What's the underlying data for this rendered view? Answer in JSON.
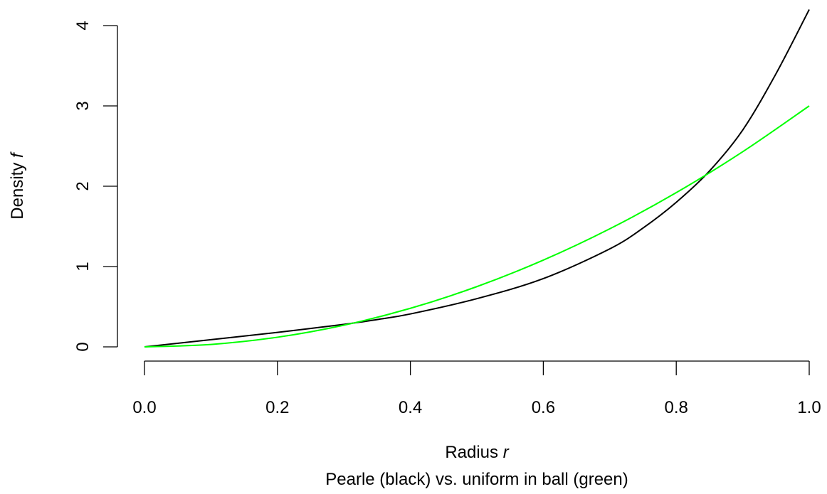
{
  "chart_data": {
    "type": "line",
    "xlabel": {
      "text": "Radius ",
      "var": "r"
    },
    "ylabel": {
      "text": "Density ",
      "var": "f"
    },
    "subtitle": "Pearle (black) vs. uniform in ball (green)",
    "xlim": [
      0,
      1
    ],
    "ylim": [
      0,
      4.2
    ],
    "x_ticks": [
      0,
      0.2,
      0.4,
      0.6,
      0.8,
      1.0
    ],
    "x_tick_labels": [
      "0.0",
      "0.2",
      "0.4",
      "0.6",
      "0.8",
      "1.0"
    ],
    "y_ticks": [
      0,
      1,
      2,
      3,
      4
    ],
    "y_tick_labels": [
      "0",
      "1",
      "2",
      "3",
      "4"
    ],
    "grid": false,
    "legend": "none",
    "series": [
      {
        "color": "#000000",
        "x": [
          0,
          0.1,
          0.2,
          0.3,
          0.35,
          0.4,
          0.5,
          0.6,
          0.7,
          0.75,
          0.8,
          0.85,
          0.9,
          0.95,
          1.0
        ],
        "y": [
          0,
          0.09,
          0.18,
          0.28,
          0.34,
          0.41,
          0.6,
          0.85,
          1.22,
          1.48,
          1.8,
          2.19,
          2.7,
          3.4,
          4.2
        ]
      },
      {
        "color": "#00ff00",
        "x": [
          0,
          0.1,
          0.2,
          0.3,
          0.4,
          0.5,
          0.6,
          0.7,
          0.8,
          0.9,
          1.0
        ],
        "y": [
          0,
          0.03,
          0.12,
          0.27,
          0.48,
          0.75,
          1.08,
          1.47,
          1.92,
          2.43,
          3.0
        ]
      }
    ]
  }
}
